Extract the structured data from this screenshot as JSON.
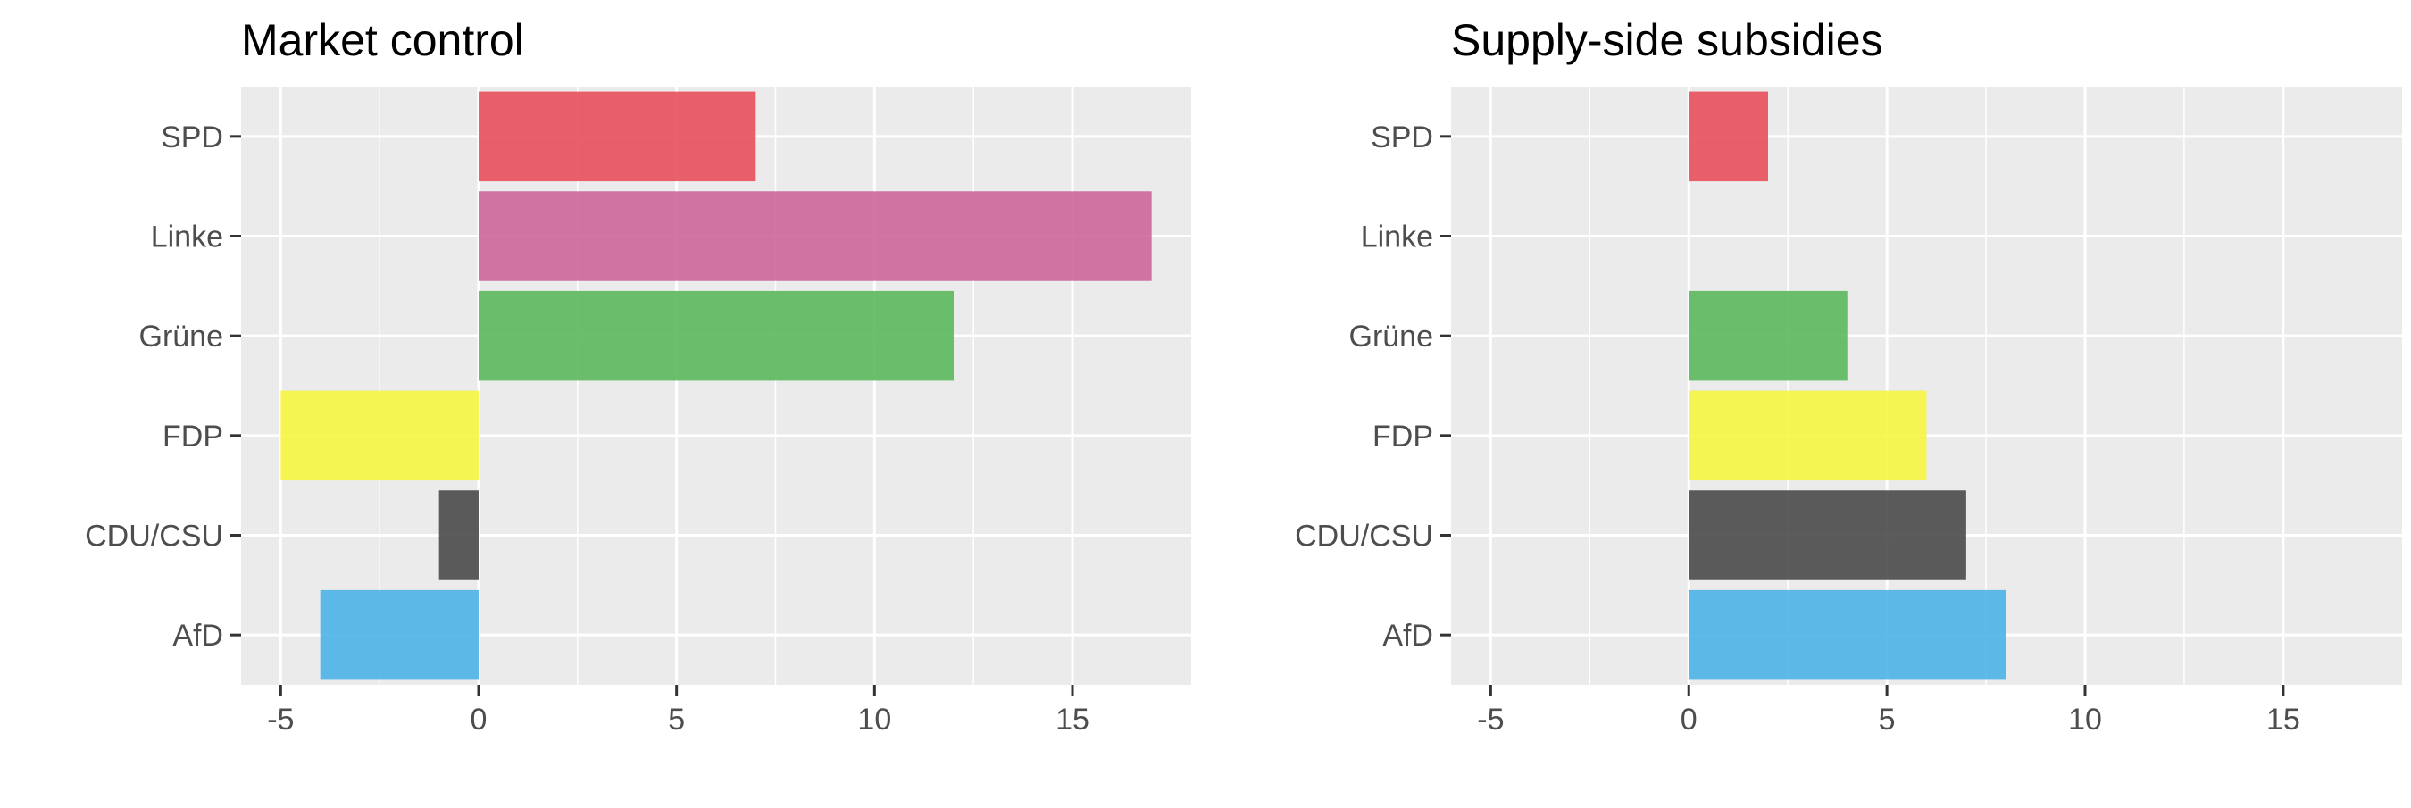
{
  "chart_data": [
    {
      "type": "bar",
      "orientation": "horizontal",
      "title": "Market control",
      "xlabel": "",
      "ylabel": "",
      "categories": [
        "SPD",
        "Linke",
        "Grüne",
        "FDP",
        "CDU/CSU",
        "AfD"
      ],
      "values": [
        7,
        17,
        12,
        -5,
        -1,
        -4
      ],
      "colors": [
        "#e8505b",
        "#cc6699",
        "#5cb85c",
        "#f5f542",
        "#4a4a4a",
        "#4db3e6"
      ],
      "xlim": [
        -6,
        18
      ],
      "xticks": [
        -5,
        0,
        5,
        10,
        15
      ],
      "grid": true
    },
    {
      "type": "bar",
      "orientation": "horizontal",
      "title": "Supply-side subsidies",
      "xlabel": "",
      "ylabel": "",
      "categories": [
        "SPD",
        "Linke",
        "Grüne",
        "FDP",
        "CDU/CSU",
        "AfD"
      ],
      "values": [
        2,
        0,
        4,
        6,
        7,
        8
      ],
      "colors": [
        "#e8505b",
        "#cc6699",
        "#5cb85c",
        "#f5f542",
        "#4a4a4a",
        "#4db3e6"
      ],
      "xlim": [
        -6,
        18
      ],
      "xticks": [
        -5,
        0,
        5,
        10,
        15
      ],
      "grid": true
    }
  ]
}
